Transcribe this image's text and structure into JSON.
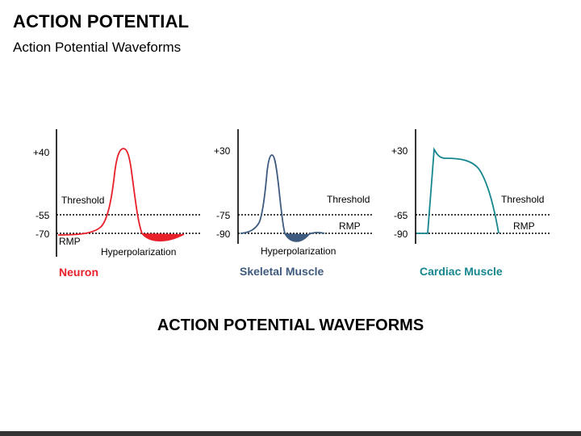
{
  "title": "ACTION POTENTIAL",
  "subtitle": "Action Potential Waveforms",
  "footer": "ACTION POTENTIAL WAVEFORMS",
  "colors": {
    "neuron": "#e8202a",
    "skeletal": "#3e5a7e",
    "cardiac": "#16878f"
  },
  "panels": {
    "neuron": {
      "label": "Neuron",
      "peak": "+40",
      "threshold_value": "-55",
      "rest_value": "-70",
      "threshold_label": "Threshold",
      "rmp_label": "RMP",
      "hyper_label": "Hyperpolarization"
    },
    "skeletal": {
      "label": "Skeletal Muscle",
      "peak": "+30",
      "threshold_value": "-75",
      "rest_value": "-90",
      "threshold_label": "Threshold",
      "rmp_label": "RMP",
      "hyper_label": "Hyperpolarization"
    },
    "cardiac": {
      "label": "Cardiac Muscle",
      "peak": "+30",
      "threshold_value": "-65",
      "rest_value": "-90",
      "threshold_label": "Threshold",
      "rmp_label": "RMP"
    }
  }
}
